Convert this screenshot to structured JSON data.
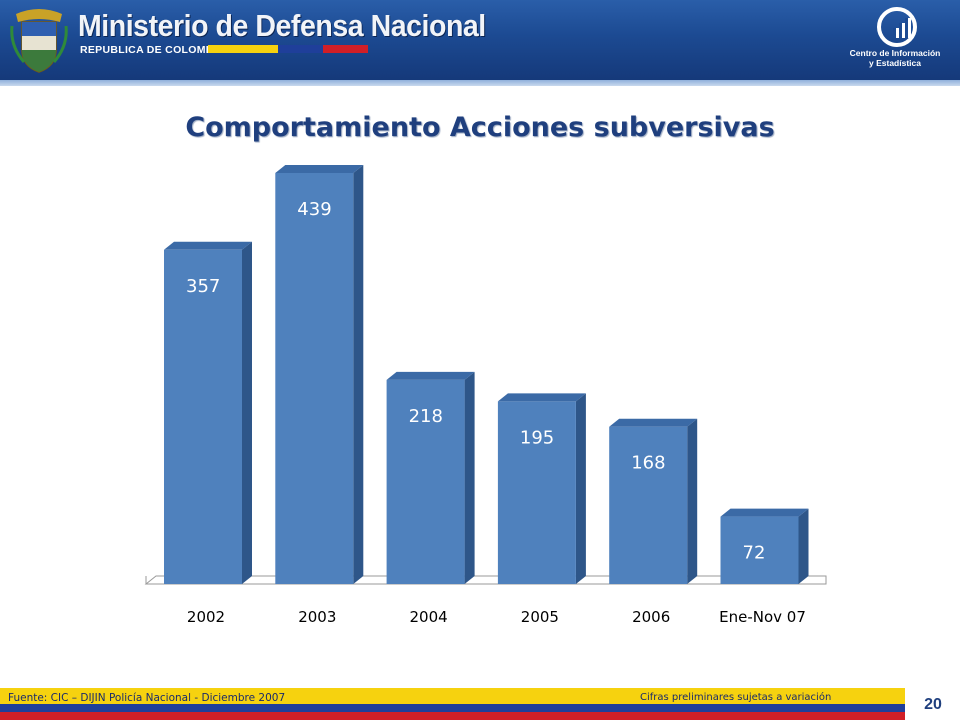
{
  "header": {
    "ministry_title": "Ministerio de Defensa Nacional",
    "ministry_subtitle": "REPUBLICA DE COLOMBIA",
    "center_name_line1": "Centro de Información",
    "center_name_line2": "y Estadística",
    "flag_colors": [
      "#f6d20f",
      "#1f3f9a",
      "#d11f27"
    ],
    "banner_color": "#1c4a92",
    "crest_icon": "coat-of-arms-icon",
    "center_icon": "bar-chart-logo-icon"
  },
  "chart_data": {
    "type": "bar",
    "title": "Comportamiento Acciones subversivas",
    "categories": [
      "2002",
      "2003",
      "2004",
      "2005",
      "2006",
      "Ene-Nov 07"
    ],
    "values": [
      357,
      439,
      218,
      195,
      168,
      72
    ],
    "data_labels": [
      "357",
      "439",
      "218",
      "195",
      "168",
      "72"
    ],
    "xlabel": "",
    "ylabel": "",
    "ylim": [
      0,
      439
    ],
    "grid": false,
    "legend": "none",
    "bar_color": "#4f81bd",
    "bar_side_color": "#2e5689",
    "bar_top_color": "#3b6aa6"
  },
  "footer": {
    "source": "Fuente: CIC – DIJIN Policía Nacional   - Diciembre 2007",
    "note": "Cifras preliminares sujetas a variación",
    "page_number": "20"
  }
}
